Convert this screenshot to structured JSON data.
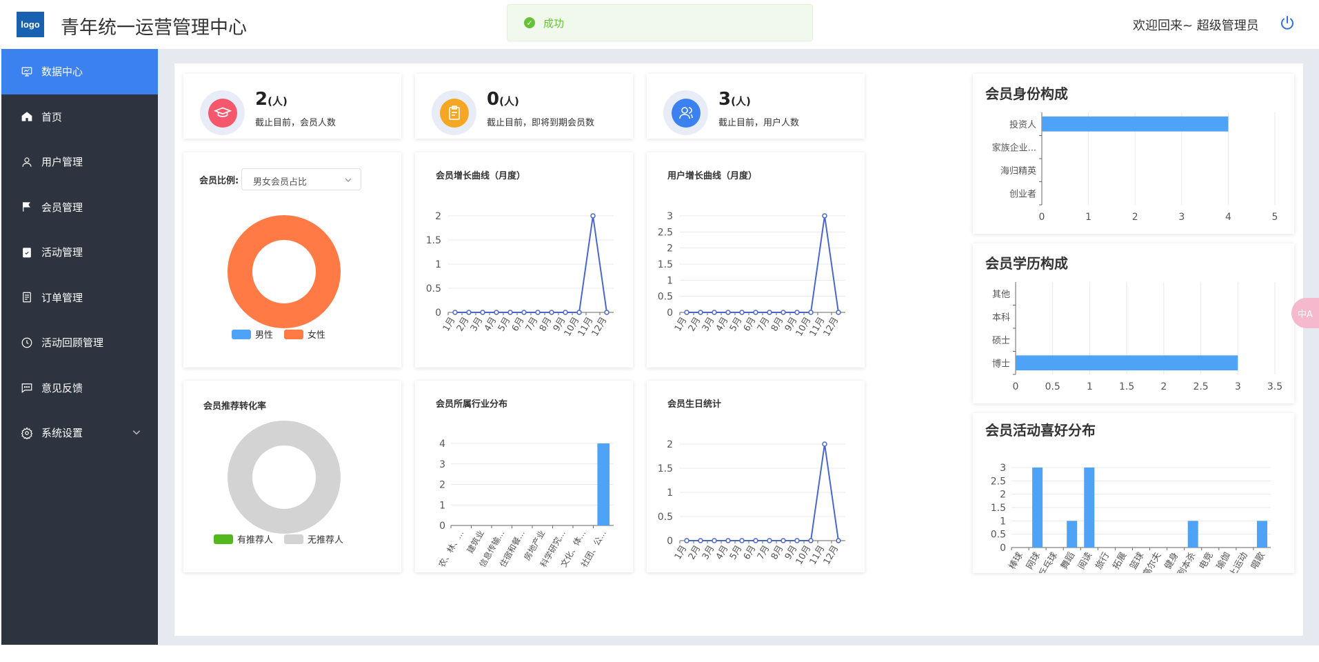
{
  "header": {
    "logo_text": "logo",
    "app_title": "青年统一运营管理中心",
    "toast": "成功",
    "welcome": "欢迎回来~ 超级管理员"
  },
  "sidebar": {
    "items": [
      {
        "label": "数据中心",
        "icon": "dashboard-icon",
        "active": true
      },
      {
        "label": "首页",
        "icon": "home-icon"
      },
      {
        "label": "用户管理",
        "icon": "user-icon"
      },
      {
        "label": "会员管理",
        "icon": "flag-icon"
      },
      {
        "label": "活动管理",
        "icon": "clipboard-check-icon"
      },
      {
        "label": "订单管理",
        "icon": "document-icon"
      },
      {
        "label": "活动回顾管理",
        "icon": "clock-icon"
      },
      {
        "label": "意见反馈",
        "icon": "chat-icon"
      },
      {
        "label": "系统设置",
        "icon": "gear-icon",
        "has_submenu": true
      }
    ]
  },
  "stats": [
    {
      "value": "2",
      "unit": "(人)",
      "desc": "截止目前，会员人数",
      "icon": "graduation-cap-icon",
      "color": "#f5576c"
    },
    {
      "value": "0",
      "unit": "(人)",
      "desc": "截止目前，即将到期会员数",
      "icon": "calendar-clipboard-icon",
      "color": "#f5a623"
    },
    {
      "value": "3",
      "unit": "(人)",
      "desc": "截止目前，用户人数",
      "icon": "users-icon",
      "color": "#3b82f0"
    }
  ],
  "member_ratio": {
    "label": "会员比例:",
    "select_value": "男女会员占比"
  },
  "referral": {
    "title": "会员推荐转化率"
  },
  "chart_data": [
    {
      "id": "gender",
      "type": "pie",
      "donut": true,
      "slices": [
        {
          "label": "男性",
          "value": 0,
          "color": "#4fa3f7"
        },
        {
          "label": "女性",
          "value": 2,
          "color": "#ff7a45"
        }
      ],
      "legend": "bottom"
    },
    {
      "id": "member_growth",
      "type": "line",
      "title": "会员增长曲线（月度）",
      "categories": [
        "1月",
        "2月",
        "3月",
        "4月",
        "5月",
        "6月",
        "7月",
        "8月",
        "9月",
        "10月",
        "11月",
        "12月"
      ],
      "values": [
        0,
        0,
        0,
        0,
        0,
        0,
        0,
        0,
        0,
        0,
        2,
        0
      ],
      "ylim": [
        0,
        2
      ],
      "yticks": [
        "0",
        "0.5",
        "1",
        "1.5",
        "2"
      ],
      "color": "#4a67c7"
    },
    {
      "id": "user_growth",
      "type": "line",
      "title": "用户增长曲线（月度）",
      "categories": [
        "1月",
        "2月",
        "3月",
        "4月",
        "5月",
        "6月",
        "7月",
        "8月",
        "9月",
        "10月",
        "11月",
        "12月"
      ],
      "values": [
        0,
        0,
        0,
        0,
        0,
        0,
        0,
        0,
        0,
        0,
        3,
        0
      ],
      "ylim": [
        0,
        3
      ],
      "yticks": [
        "0",
        "0.5",
        "1",
        "1.5",
        "2",
        "2.5",
        "3"
      ],
      "color": "#4a67c7"
    },
    {
      "id": "referral",
      "type": "pie",
      "donut": true,
      "slices": [
        {
          "label": "有推荐人",
          "value": 0,
          "color": "#52b81e"
        },
        {
          "label": "无推荐人",
          "value": 1,
          "color": "#d3d3d3"
        }
      ],
      "legend": "bottom"
    },
    {
      "id": "industry",
      "type": "bar",
      "title": "会员所属行业分布",
      "categories": [
        "农、林、...",
        "建筑业",
        "信息传输...",
        "住宿和餐...",
        "房地产业",
        "科学研究...",
        "文化、体...",
        "社团、公..."
      ],
      "values": [
        0,
        0,
        0,
        0,
        0,
        0,
        0,
        4
      ],
      "ylim": [
        0,
        4
      ],
      "yticks": [
        "0",
        "1",
        "2",
        "3",
        "4"
      ],
      "color": "#4fa3f7"
    },
    {
      "id": "birthday",
      "type": "line",
      "title": "会员生日统计",
      "categories": [
        "1月",
        "2月",
        "3月",
        "4月",
        "5月",
        "6月",
        "7月",
        "8月",
        "9月",
        "10月",
        "11月",
        "12月"
      ],
      "values": [
        0,
        0,
        0,
        0,
        0,
        0,
        0,
        0,
        0,
        0,
        2,
        0
      ],
      "ylim": [
        0,
        2
      ],
      "yticks": [
        "0",
        "0.5",
        "1",
        "1.5",
        "2"
      ],
      "color": "#4a67c7"
    },
    {
      "id": "identity",
      "type": "bar",
      "orientation": "horizontal",
      "title": "会员身份构成",
      "categories": [
        "创业者",
        "海归精英",
        "家族企业...",
        "投资人"
      ],
      "values": [
        0,
        0,
        0,
        4
      ],
      "xlim": [
        0,
        5
      ],
      "xticks": [
        "0",
        "1",
        "2",
        "3",
        "4",
        "5"
      ],
      "color": "#4fa3f7"
    },
    {
      "id": "education",
      "type": "bar",
      "orientation": "horizontal",
      "title": "会员学历构成",
      "categories": [
        "博士",
        "硕士",
        "本科",
        "其他"
      ],
      "values": [
        3,
        0,
        0,
        0
      ],
      "xlim": [
        0,
        3.5
      ],
      "xticks": [
        "0",
        "0.5",
        "1",
        "1.5",
        "2",
        "2.5",
        "3",
        "3.5"
      ],
      "color": "#4fa3f7"
    },
    {
      "id": "hobby",
      "type": "bar",
      "title": "会员活动喜好分布",
      "categories": [
        "棒球",
        "网球",
        "乒乓球",
        "舞蹈",
        "阅读",
        "旅行",
        "拓展",
        "篮球",
        "高尔夫",
        "健身",
        "剧本杀",
        "电竞",
        "瑜伽",
        "水上运动",
        "唱歌"
      ],
      "values": [
        0,
        3,
        0,
        1,
        3,
        0,
        0,
        0,
        0,
        0,
        1,
        0,
        0,
        0,
        1
      ],
      "ylim": [
        0,
        3
      ],
      "yticks": [
        "0",
        "0.5",
        "1",
        "1.5",
        "2",
        "2.5",
        "3"
      ],
      "color": "#4fa3f7"
    }
  ],
  "translate_button": "中A"
}
